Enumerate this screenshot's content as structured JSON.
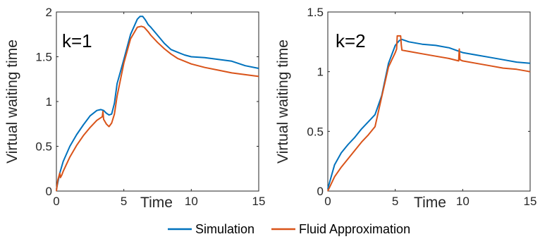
{
  "chart_data": [
    {
      "type": "line",
      "panel_label": "k=1",
      "xlabel": "Time",
      "ylabel": "Virtual waiting time",
      "xlim": [
        0,
        15
      ],
      "ylim": [
        0,
        2
      ],
      "xticks": [
        "0",
        "5",
        "10",
        "15"
      ],
      "yticks": [
        "0",
        "0.5",
        "1",
        "1.5",
        "2"
      ],
      "series": [
        {
          "name": "Simulation",
          "x": [
            0,
            0.25,
            0.5,
            1,
            1.5,
            2,
            2.5,
            3,
            3.3,
            3.5,
            3.7,
            3.9,
            4.1,
            4.3,
            4.5,
            5,
            5.5,
            6,
            6.2,
            6.4,
            6.6,
            6.8,
            7,
            7.5,
            8,
            8.5,
            9,
            9.5,
            10,
            11,
            12,
            13,
            14,
            15
          ],
          "y": [
            0.02,
            0.2,
            0.33,
            0.5,
            0.63,
            0.74,
            0.84,
            0.9,
            0.91,
            0.9,
            0.87,
            0.85,
            0.86,
            0.98,
            1.2,
            1.47,
            1.75,
            1.92,
            1.95,
            1.95,
            1.91,
            1.86,
            1.83,
            1.74,
            1.65,
            1.58,
            1.55,
            1.52,
            1.5,
            1.49,
            1.47,
            1.45,
            1.4,
            1.37
          ]
        },
        {
          "name": "Fluid Approximation",
          "x": [
            0,
            0.1,
            0.25,
            0.3,
            0.4,
            0.5,
            1,
            1.5,
            2,
            2.5,
            3,
            3.4,
            3.45,
            3.5,
            3.55,
            3.7,
            3.9,
            4.1,
            4.3,
            4.5,
            5,
            5.5,
            6,
            6.3,
            6.5,
            6.8,
            7,
            7.5,
            8,
            8.5,
            9,
            10,
            11,
            12,
            13,
            14,
            15
          ],
          "y": [
            0,
            0.12,
            0.2,
            0.15,
            0.18,
            0.22,
            0.38,
            0.51,
            0.62,
            0.71,
            0.79,
            0.83,
            0.89,
            0.8,
            0.79,
            0.75,
            0.72,
            0.76,
            0.86,
            1.06,
            1.43,
            1.7,
            1.83,
            1.84,
            1.83,
            1.78,
            1.74,
            1.66,
            1.59,
            1.53,
            1.48,
            1.42,
            1.38,
            1.35,
            1.32,
            1.3,
            1.28
          ]
        }
      ]
    },
    {
      "type": "line",
      "panel_label": "k=2",
      "xlabel": "Time",
      "ylabel": "Virtual waiting time",
      "xlim": [
        0,
        15
      ],
      "ylim": [
        0,
        1.5
      ],
      "xticks": [
        "0",
        "5",
        "10",
        "15"
      ],
      "yticks": [
        "0",
        "0.5",
        "1",
        "1.5"
      ],
      "series": [
        {
          "name": "Simulation",
          "x": [
            0,
            0.5,
            1,
            1.5,
            2,
            2.5,
            3,
            3.5,
            4,
            4.5,
            5,
            5.3,
            5.5,
            6,
            7,
            8,
            9,
            10,
            11,
            12,
            13,
            14,
            15
          ],
          "y": [
            0.02,
            0.22,
            0.32,
            0.39,
            0.45,
            0.52,
            0.58,
            0.64,
            0.8,
            1.07,
            1.22,
            1.26,
            1.27,
            1.25,
            1.23,
            1.22,
            1.2,
            1.16,
            1.14,
            1.12,
            1.1,
            1.08,
            1.07
          ]
        },
        {
          "name": "Fluid Approximation",
          "x": [
            0,
            0.5,
            1,
            1.5,
            2,
            2.5,
            3,
            3.5,
            4,
            4.5,
            5,
            5.1,
            5.15,
            5.4,
            5.45,
            5.5,
            6,
            7,
            8,
            9,
            9.7,
            9.75,
            9.8,
            10,
            11,
            12,
            13,
            14,
            15
          ],
          "y": [
            0,
            0.12,
            0.2,
            0.27,
            0.34,
            0.41,
            0.47,
            0.54,
            0.79,
            1.04,
            1.16,
            1.19,
            1.3,
            1.3,
            1.22,
            1.18,
            1.17,
            1.15,
            1.13,
            1.11,
            1.09,
            1.19,
            1.1,
            1.09,
            1.07,
            1.05,
            1.03,
            1.02,
            1.0
          ]
        }
      ]
    }
  ],
  "legend": {
    "position": "bottom-center",
    "items": [
      {
        "label": "Simulation",
        "color": "#0072BD"
      },
      {
        "label": "Fluid Approximation",
        "color": "#D95319"
      }
    ]
  }
}
